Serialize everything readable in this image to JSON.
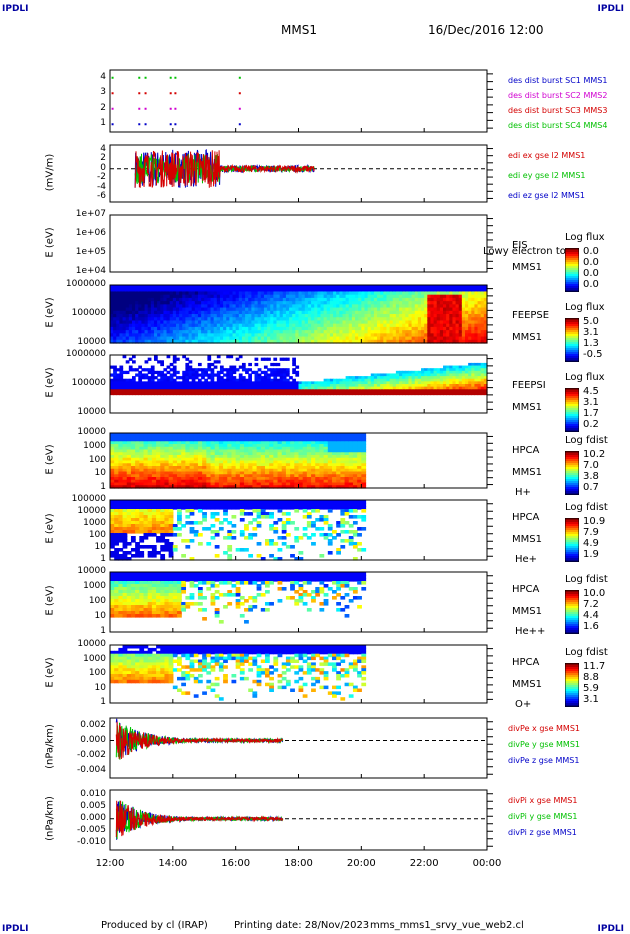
{
  "corner_label": "IPDLI",
  "header": {
    "spacecraft": "MMS1",
    "datetime": "16/Dec/2016 12:00"
  },
  "footer": {
    "produced_by": "Produced by cl (IRAP)",
    "printing_date": "Printing date: 28/Nov/2023",
    "file": "mms_mms1_srvy_vue_web2.cl"
  },
  "colors": {
    "red": "#d40000",
    "green": "#00c000",
    "blue": "#0000c8",
    "magenta": "#d000d0"
  },
  "chart_data": [
    {
      "type": "scatter",
      "panel": "burst",
      "yticks": [
        "1",
        "2",
        "3",
        "4"
      ],
      "ylim": [
        0.5,
        4.5
      ],
      "legend": [
        {
          "name": "des dist burst SC1 MMS1",
          "color": "#0000c8"
        },
        {
          "name": "des dist burst SC2 MMS2",
          "color": "#d000d0"
        },
        {
          "name": "des dist burst SC3 MMS3",
          "color": "#d40000"
        },
        {
          "name": "des dist burst SC4 MMS4",
          "color": "#00c000"
        }
      ]
    },
    {
      "type": "line",
      "panel": "edi",
      "ylabel": "(mV/m)",
      "yticks": [
        "-6",
        "-4",
        "-2",
        "0",
        "2",
        "4"
      ],
      "ylim": [
        -7,
        5
      ],
      "series": [
        {
          "name": "edi ex gse l2 MMS1",
          "color": "#d40000"
        },
        {
          "name": "edi ey gse l2 MMS1",
          "color": "#00c000"
        },
        {
          "name": "edi ez gse l2 MMS1",
          "color": "#0000c8"
        }
      ]
    },
    {
      "type": "heatmap",
      "panel": "eis",
      "ylabel": "E (eV)",
      "yticks": [
        "1e+07",
        "1e+06",
        "1e+05",
        "1e+04"
      ],
      "log": true,
      "right_label": [
        "EIS",
        "MMS1"
      ],
      "overlay_text": "Lowy electron to",
      "colorbar_title": "Log flux",
      "colorbar_values": [
        "0.0",
        "0.0",
        "0.0",
        "0.0"
      ]
    },
    {
      "type": "heatmap",
      "panel": "feepse",
      "ylabel": "E (eV)",
      "yticks": [
        "1000000",
        "100000",
        "10000"
      ],
      "log": true,
      "right_label": [
        "FEEPSE",
        "MMS1"
      ],
      "colorbar_title": "Log flux",
      "colorbar_values": [
        "5.0",
        "3.1",
        "1.3",
        "-0.5"
      ]
    },
    {
      "type": "heatmap",
      "panel": "feepsi",
      "ylabel": "E (eV)",
      "yticks": [
        "1000000",
        "100000",
        "10000"
      ],
      "log": true,
      "right_label": [
        "FEEPSI",
        "MMS1"
      ],
      "colorbar_title": "Log flux",
      "colorbar_values": [
        "4.5",
        "3.1",
        "1.7",
        "0.2"
      ]
    },
    {
      "type": "heatmap",
      "panel": "hpca_h",
      "ylabel": "E (eV)",
      "yticks": [
        "10000",
        "1000",
        "100",
        "10",
        "1"
      ],
      "log": true,
      "right_label": [
        "HPCA",
        "MMS1",
        "H+"
      ],
      "colorbar_title": "Log fdist",
      "colorbar_values": [
        "10.2",
        "7.0",
        "3.8",
        "0.7"
      ]
    },
    {
      "type": "heatmap",
      "panel": "hpca_he",
      "ylabel": "E (eV)",
      "yticks": [
        "100000",
        "10000",
        "1000",
        "100",
        "10",
        "1"
      ],
      "log": true,
      "right_label": [
        "HPCA",
        "MMS1",
        "He+"
      ],
      "colorbar_title": "Log fdist",
      "colorbar_values": [
        "10.9",
        "7.9",
        "4.9",
        "1.9"
      ]
    },
    {
      "type": "heatmap",
      "panel": "hpca_hepp",
      "ylabel": "E (eV)",
      "yticks": [
        "10000",
        "1000",
        "100",
        "10",
        "1"
      ],
      "log": true,
      "right_label": [
        "HPCA",
        "MMS1",
        "He++"
      ],
      "colorbar_title": "Log fdist",
      "colorbar_values": [
        "10.0",
        "7.2",
        "4.4",
        "1.6"
      ]
    },
    {
      "type": "heatmap",
      "panel": "hpca_o",
      "ylabel": "E (eV)",
      "yticks": [
        "10000",
        "1000",
        "100",
        "10",
        "1"
      ],
      "log": true,
      "right_label": [
        "HPCA",
        "MMS1",
        "O+"
      ],
      "colorbar_title": "Log fdist",
      "colorbar_values": [
        "11.7",
        "8.8",
        "5.9",
        "3.1"
      ]
    },
    {
      "type": "line",
      "panel": "divpe",
      "ylabel": "(nPa/km)",
      "yticks": [
        "0.002",
        "0.000",
        "-0.002",
        "-0.004"
      ],
      "ylim": [
        -0.005,
        0.003
      ],
      "series": [
        {
          "name": "divPe x gse MMS1",
          "color": "#d40000"
        },
        {
          "name": "divPe y gse MMS1",
          "color": "#00c000"
        },
        {
          "name": "divPe z gse MMS1",
          "color": "#0000c8"
        }
      ]
    },
    {
      "type": "line",
      "panel": "divpi",
      "ylabel": "(nPa/km)",
      "yticks": [
        "0.010",
        "0.005",
        "0.000",
        "-0.005",
        "-0.010"
      ],
      "ylim": [
        -0.013,
        0.012
      ],
      "series": [
        {
          "name": "divPi x gse MMS1",
          "color": "#d40000"
        },
        {
          "name": "divPi y gse MMS1",
          "color": "#00c000"
        },
        {
          "name": "divPi z gse MMS1",
          "color": "#0000c8"
        }
      ]
    }
  ],
  "x_axis": {
    "ticks": [
      "12:00",
      "14:00",
      "16:00",
      "18:00",
      "20:00",
      "22:00",
      "00:00"
    ]
  }
}
